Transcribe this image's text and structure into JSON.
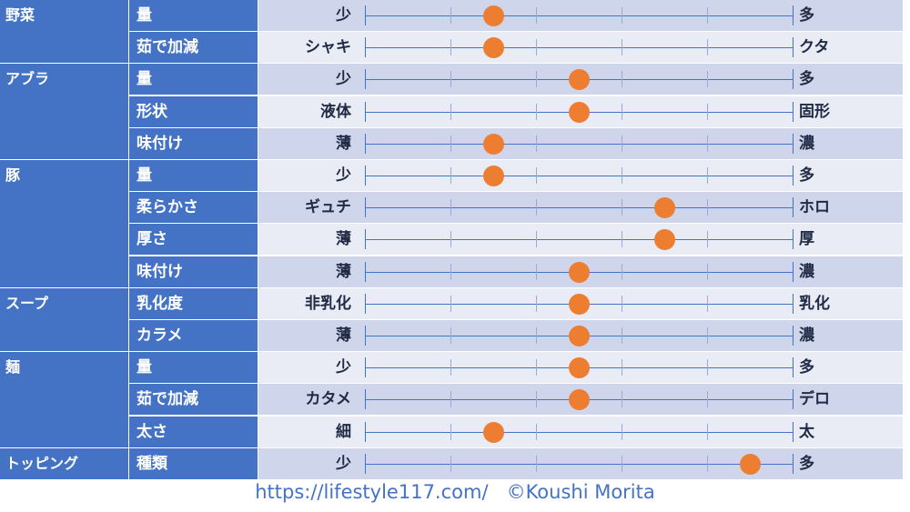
{
  "groups": [
    {
      "name": "野菜",
      "rows": [
        {
          "label": "量",
          "left": "少",
          "right": "多",
          "level": 0.3
        },
        {
          "label": "茹で加減",
          "left": "シャキ",
          "right": "クタ",
          "level": 0.3
        }
      ]
    },
    {
      "name": "アブラ",
      "rows": [
        {
          "label": "量",
          "left": "少",
          "right": "多",
          "level": 0.5
        },
        {
          "label": "形状",
          "left": "液体",
          "right": "固形",
          "level": 0.5
        },
        {
          "label": "味付け",
          "left": "薄",
          "right": "濃",
          "level": 0.3
        }
      ]
    },
    {
      "name": "豚",
      "rows": [
        {
          "label": "量",
          "left": "少",
          "right": "多",
          "level": 0.3
        },
        {
          "label": "柔らかさ",
          "left": "ギュチ",
          "right": "ホロ",
          "level": 0.7
        },
        {
          "label": "厚さ",
          "left": "薄",
          "right": "厚",
          "level": 0.7
        },
        {
          "label": "味付け",
          "left": "薄",
          "right": "濃",
          "level": 0.5
        }
      ]
    },
    {
      "name": "スープ",
      "rows": [
        {
          "label": "乳化度",
          "left": "非乳化",
          "right": "乳化",
          "level": 0.5
        },
        {
          "label": "カラメ",
          "left": "薄",
          "right": "濃",
          "level": 0.5
        }
      ]
    },
    {
      "name": "麺",
      "rows": [
        {
          "label": "量",
          "left": "少",
          "right": "多",
          "level": 0.5
        },
        {
          "label": "茹で加減",
          "left": "カタメ",
          "right": "デロ",
          "level": 0.5
        },
        {
          "label": "太さ",
          "left": "細",
          "right": "太",
          "level": 0.3
        }
      ]
    },
    {
      "name": "トッピング",
      "rows": [
        {
          "label": "種類",
          "left": "少",
          "right": "多",
          "level": 0.9
        }
      ]
    }
  ],
  "footer": {
    "url": "https://lifestyle117.com/",
    "credit": "©Koushi Morita"
  },
  "colors": {
    "header": "#4472c4",
    "band_odd": "#cfd5ea",
    "band_even": "#e9ebf5",
    "dot": "#ed7d31"
  }
}
